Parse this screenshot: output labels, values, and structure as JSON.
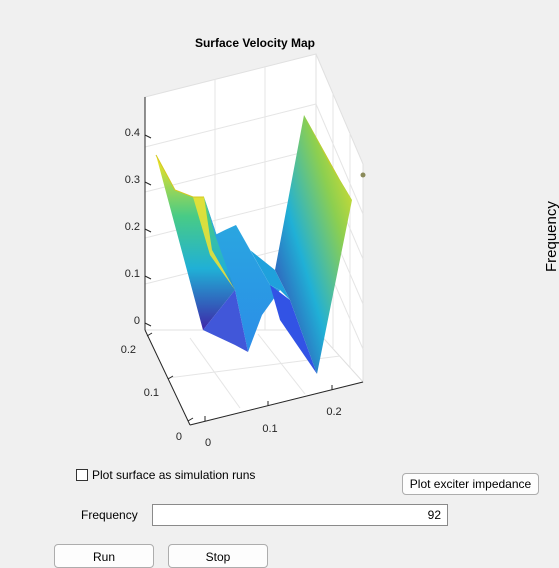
{
  "plot": {
    "title": "Surface Velocity Map",
    "z_ticks": [
      "0.4",
      "0.3",
      "0.2",
      "0.1",
      "0"
    ],
    "y_ticks": [
      "0.2",
      "0.1",
      "0"
    ],
    "x_ticks": [
      "0",
      "0.1",
      "0.2"
    ],
    "colormap": [
      "#3e26a8",
      "#2f67f8",
      "#20b0d6",
      "#48cb86",
      "#bcbd26",
      "#f9e320"
    ]
  },
  "side_label": "Frequency",
  "controls": {
    "plot_surface_label": "Plot surface as simulation runs",
    "plot_surface_checked": false,
    "plot_impedance_label": "Plot exciter impedance",
    "frequency_label": "Frequency",
    "frequency_value": "92",
    "run_label": "Run",
    "stop_label": "Stop"
  }
}
